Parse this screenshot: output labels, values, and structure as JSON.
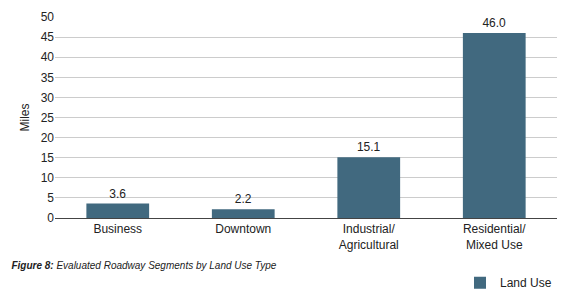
{
  "chart_data": {
    "type": "bar",
    "title": "Figure 8: Evaluated Roadway Segments by Land Use Type",
    "y_label": "Miles",
    "categories": [
      "Business",
      "Downtown",
      "Industrial/ Agricultural",
      "Residential/ Mixed Use"
    ],
    "series": [
      {
        "name": "Land Use",
        "color": "#41697f",
        "values": [
          3.6,
          2.2,
          15.1,
          46.0
        ],
        "value_labels": [
          "3.6",
          "2.2",
          "15.1",
          "46.0"
        ]
      }
    ],
    "ylim": [
      0,
      50
    ],
    "yticks": [
      0,
      5,
      10,
      15,
      20,
      25,
      30,
      35,
      40,
      45,
      50
    ],
    "grid": true,
    "data_labels": true,
    "legend": "lower right"
  }
}
